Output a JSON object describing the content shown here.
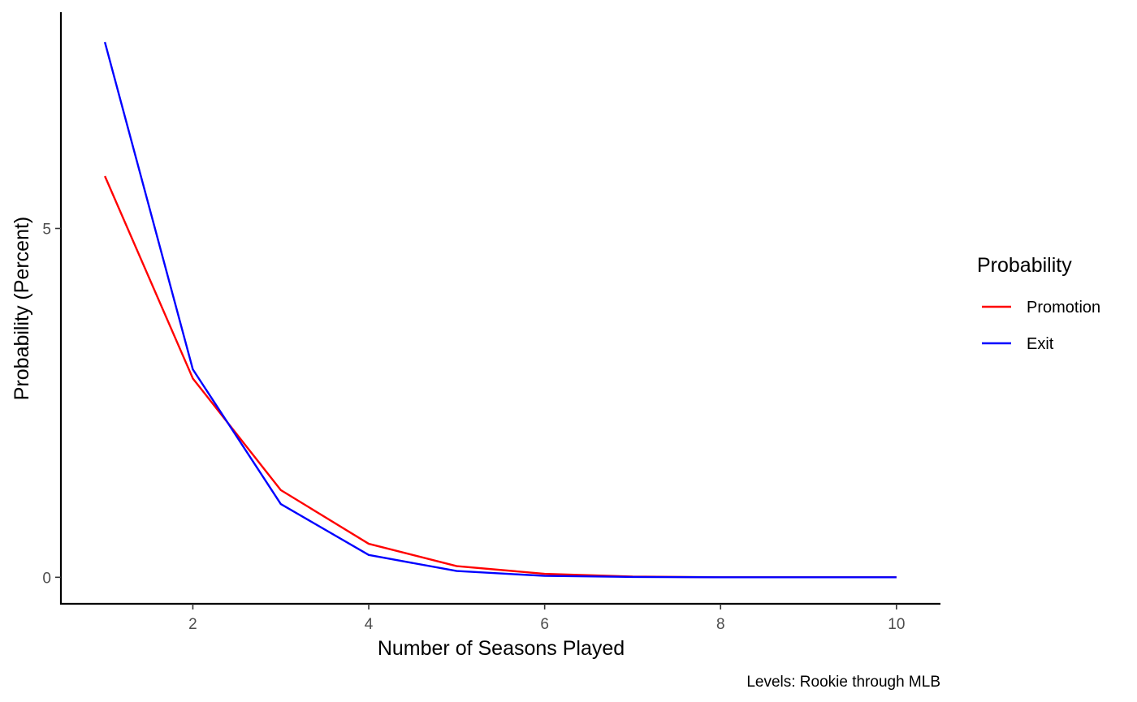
{
  "chart_data": {
    "type": "line",
    "title": "",
    "xlabel": "Number of Seasons Played",
    "ylabel": "Probability (Percent)",
    "caption": "Levels: Rookie through MLB",
    "xlim": [
      0.5,
      10.5
    ],
    "ylim": [
      -0.38,
      8.1
    ],
    "x_ticks": [
      2,
      4,
      6,
      8,
      10
    ],
    "y_ticks": [
      0,
      5
    ],
    "grid": false,
    "legend": {
      "title": "Probability",
      "position": "right"
    },
    "x": [
      1,
      2,
      3,
      4,
      5,
      6,
      7,
      8,
      9,
      10
    ],
    "series": [
      {
        "name": "Promotion",
        "color": "#ff0000",
        "values": [
          5.75,
          2.85,
          1.25,
          0.48,
          0.16,
          0.05,
          0.01,
          0.0,
          0.0,
          0.0
        ]
      },
      {
        "name": "Exit",
        "color": "#0000ff",
        "values": [
          7.67,
          2.98,
          1.05,
          0.32,
          0.09,
          0.02,
          0.005,
          0.0,
          0.0,
          0.0
        ]
      }
    ]
  }
}
